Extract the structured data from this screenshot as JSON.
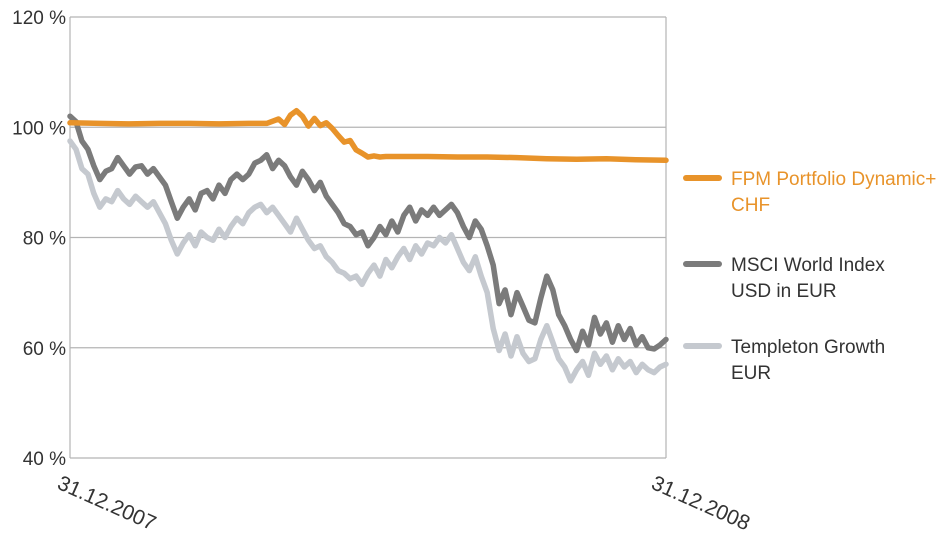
{
  "chart_data": {
    "type": "line",
    "x_range": [
      "31.12.2007",
      "31.12.2008"
    ],
    "x_ticks": [
      "31.12.2007",
      "31.12.2008"
    ],
    "y_ticks": [
      "40 %",
      "60 %",
      "80 %",
      "100 %",
      "120 %"
    ],
    "ylim": [
      40,
      120
    ],
    "grid": true,
    "legend_position": "right",
    "series": [
      {
        "name": "FPM Portfolio Dynamic+ CHF",
        "name_lines": [
          "FPM Portfolio Dynamic+",
          "CHF"
        ],
        "color": "#e8932a",
        "x": [
          0,
          0.05,
          0.1,
          0.15,
          0.2,
          0.25,
          0.3,
          0.33,
          0.35,
          0.36,
          0.37,
          0.38,
          0.39,
          0.4,
          0.41,
          0.42,
          0.43,
          0.44,
          0.45,
          0.46,
          0.47,
          0.48,
          0.49,
          0.5,
          0.51,
          0.52,
          0.53,
          0.55,
          0.6,
          0.65,
          0.7,
          0.75,
          0.8,
          0.85,
          0.9,
          0.95,
          1.0
        ],
        "values": [
          100.8,
          100.7,
          100.6,
          100.7,
          100.7,
          100.6,
          100.7,
          100.7,
          101.5,
          100.5,
          102.2,
          103.0,
          102.0,
          100.2,
          101.6,
          100.3,
          100.8,
          99.8,
          98.5,
          97.3,
          97.6,
          95.9,
          95.3,
          94.6,
          94.8,
          94.6,
          94.7,
          94.7,
          94.7,
          94.6,
          94.6,
          94.5,
          94.3,
          94.2,
          94.3,
          94.1,
          94.0
        ]
      },
      {
        "name": "MSCI World Index USD in EUR",
        "name_lines": [
          "MSCI World Index",
          "USD in EUR"
        ],
        "color": "#7b7b7b",
        "x": [
          0,
          0.01,
          0.02,
          0.03,
          0.04,
          0.05,
          0.06,
          0.07,
          0.08,
          0.09,
          0.1,
          0.11,
          0.12,
          0.13,
          0.14,
          0.15,
          0.16,
          0.17,
          0.18,
          0.19,
          0.2,
          0.21,
          0.22,
          0.23,
          0.24,
          0.25,
          0.26,
          0.27,
          0.28,
          0.29,
          0.3,
          0.31,
          0.32,
          0.33,
          0.34,
          0.35,
          0.36,
          0.37,
          0.38,
          0.39,
          0.4,
          0.41,
          0.42,
          0.43,
          0.44,
          0.45,
          0.46,
          0.47,
          0.48,
          0.49,
          0.5,
          0.51,
          0.52,
          0.53,
          0.54,
          0.55,
          0.56,
          0.57,
          0.58,
          0.59,
          0.6,
          0.61,
          0.62,
          0.63,
          0.64,
          0.65,
          0.66,
          0.67,
          0.68,
          0.69,
          0.7,
          0.71,
          0.72,
          0.73,
          0.74,
          0.75,
          0.76,
          0.77,
          0.78,
          0.79,
          0.8,
          0.81,
          0.82,
          0.83,
          0.84,
          0.85,
          0.86,
          0.87,
          0.88,
          0.89,
          0.9,
          0.91,
          0.92,
          0.93,
          0.94,
          0.95,
          0.96,
          0.97,
          0.98,
          0.99,
          1.0
        ],
        "values": [
          102.0,
          101.0,
          97.5,
          96.0,
          93.0,
          90.5,
          92.0,
          92.5,
          94.5,
          93.0,
          91.5,
          92.8,
          93.0,
          91.5,
          92.5,
          91.0,
          89.5,
          86.5,
          83.5,
          85.5,
          87.0,
          85.0,
          88.0,
          88.5,
          87.0,
          89.5,
          88.0,
          90.5,
          91.5,
          90.5,
          91.5,
          93.5,
          94.0,
          95.0,
          92.5,
          94.0,
          93.0,
          91.0,
          89.5,
          92.0,
          90.5,
          88.5,
          90.0,
          87.5,
          86.0,
          84.5,
          82.5,
          82.0,
          80.5,
          81.0,
          78.5,
          80.0,
          82.0,
          80.5,
          83.0,
          81.0,
          84.0,
          85.5,
          83.0,
          85.0,
          84.0,
          85.5,
          84.0,
          85.0,
          86.0,
          84.5,
          82.0,
          80.0,
          83.0,
          81.5,
          78.5,
          75.0,
          68.0,
          70.5,
          66.0,
          70.0,
          67.5,
          65.0,
          64.5,
          69.0,
          73.0,
          70.5,
          66.0,
          64.0,
          61.5,
          59.5,
          63.0,
          60.5,
          65.5,
          62.5,
          64.5,
          61.0,
          64.0,
          61.5,
          63.5,
          60.5,
          62.0,
          60.0,
          59.8,
          60.5,
          61.5
        ]
      },
      {
        "name": "Templeton Growth EUR",
        "name_lines": [
          "Templeton Growth",
          "EUR"
        ],
        "color": "#c5c9cf",
        "x": [
          0,
          0.01,
          0.02,
          0.03,
          0.04,
          0.05,
          0.06,
          0.07,
          0.08,
          0.09,
          0.1,
          0.11,
          0.12,
          0.13,
          0.14,
          0.15,
          0.16,
          0.17,
          0.18,
          0.19,
          0.2,
          0.21,
          0.22,
          0.23,
          0.24,
          0.25,
          0.26,
          0.27,
          0.28,
          0.29,
          0.3,
          0.31,
          0.32,
          0.33,
          0.34,
          0.35,
          0.36,
          0.37,
          0.38,
          0.39,
          0.4,
          0.41,
          0.42,
          0.43,
          0.44,
          0.45,
          0.46,
          0.47,
          0.48,
          0.49,
          0.5,
          0.51,
          0.52,
          0.53,
          0.54,
          0.55,
          0.56,
          0.57,
          0.58,
          0.59,
          0.6,
          0.61,
          0.62,
          0.63,
          0.64,
          0.65,
          0.66,
          0.67,
          0.68,
          0.69,
          0.7,
          0.71,
          0.72,
          0.73,
          0.74,
          0.75,
          0.76,
          0.77,
          0.78,
          0.79,
          0.8,
          0.81,
          0.82,
          0.83,
          0.84,
          0.85,
          0.86,
          0.87,
          0.88,
          0.89,
          0.9,
          0.91,
          0.92,
          0.93,
          0.94,
          0.95,
          0.96,
          0.97,
          0.98,
          0.99,
          1.0
        ],
        "values": [
          97.5,
          96.0,
          92.5,
          91.5,
          88.0,
          85.5,
          87.0,
          86.5,
          88.5,
          87.0,
          86.0,
          87.5,
          86.5,
          85.5,
          86.5,
          84.5,
          82.5,
          79.5,
          77.0,
          79.0,
          80.5,
          78.5,
          81.0,
          80.0,
          79.5,
          81.5,
          80.0,
          82.0,
          83.5,
          82.5,
          84.5,
          85.5,
          86.0,
          84.5,
          85.5,
          84.0,
          82.5,
          81.0,
          83.5,
          81.5,
          79.5,
          78.0,
          78.5,
          76.5,
          75.5,
          74.0,
          73.5,
          72.5,
          73.0,
          71.5,
          73.5,
          75.0,
          73.0,
          76.0,
          74.5,
          76.5,
          78.0,
          76.0,
          78.5,
          77.0,
          79.0,
          78.5,
          80.0,
          79.0,
          80.5,
          78.0,
          75.5,
          74.0,
          76.5,
          73.0,
          70.0,
          63.5,
          59.5,
          62.5,
          58.5,
          62.0,
          59.0,
          57.5,
          58.0,
          61.5,
          64.0,
          61.0,
          58.0,
          56.5,
          54.0,
          56.0,
          57.5,
          55.0,
          59.0,
          57.0,
          58.5,
          56.0,
          58.0,
          56.5,
          57.5,
          55.5,
          57.0,
          56.0,
          55.5,
          56.5,
          57.0
        ]
      }
    ]
  }
}
